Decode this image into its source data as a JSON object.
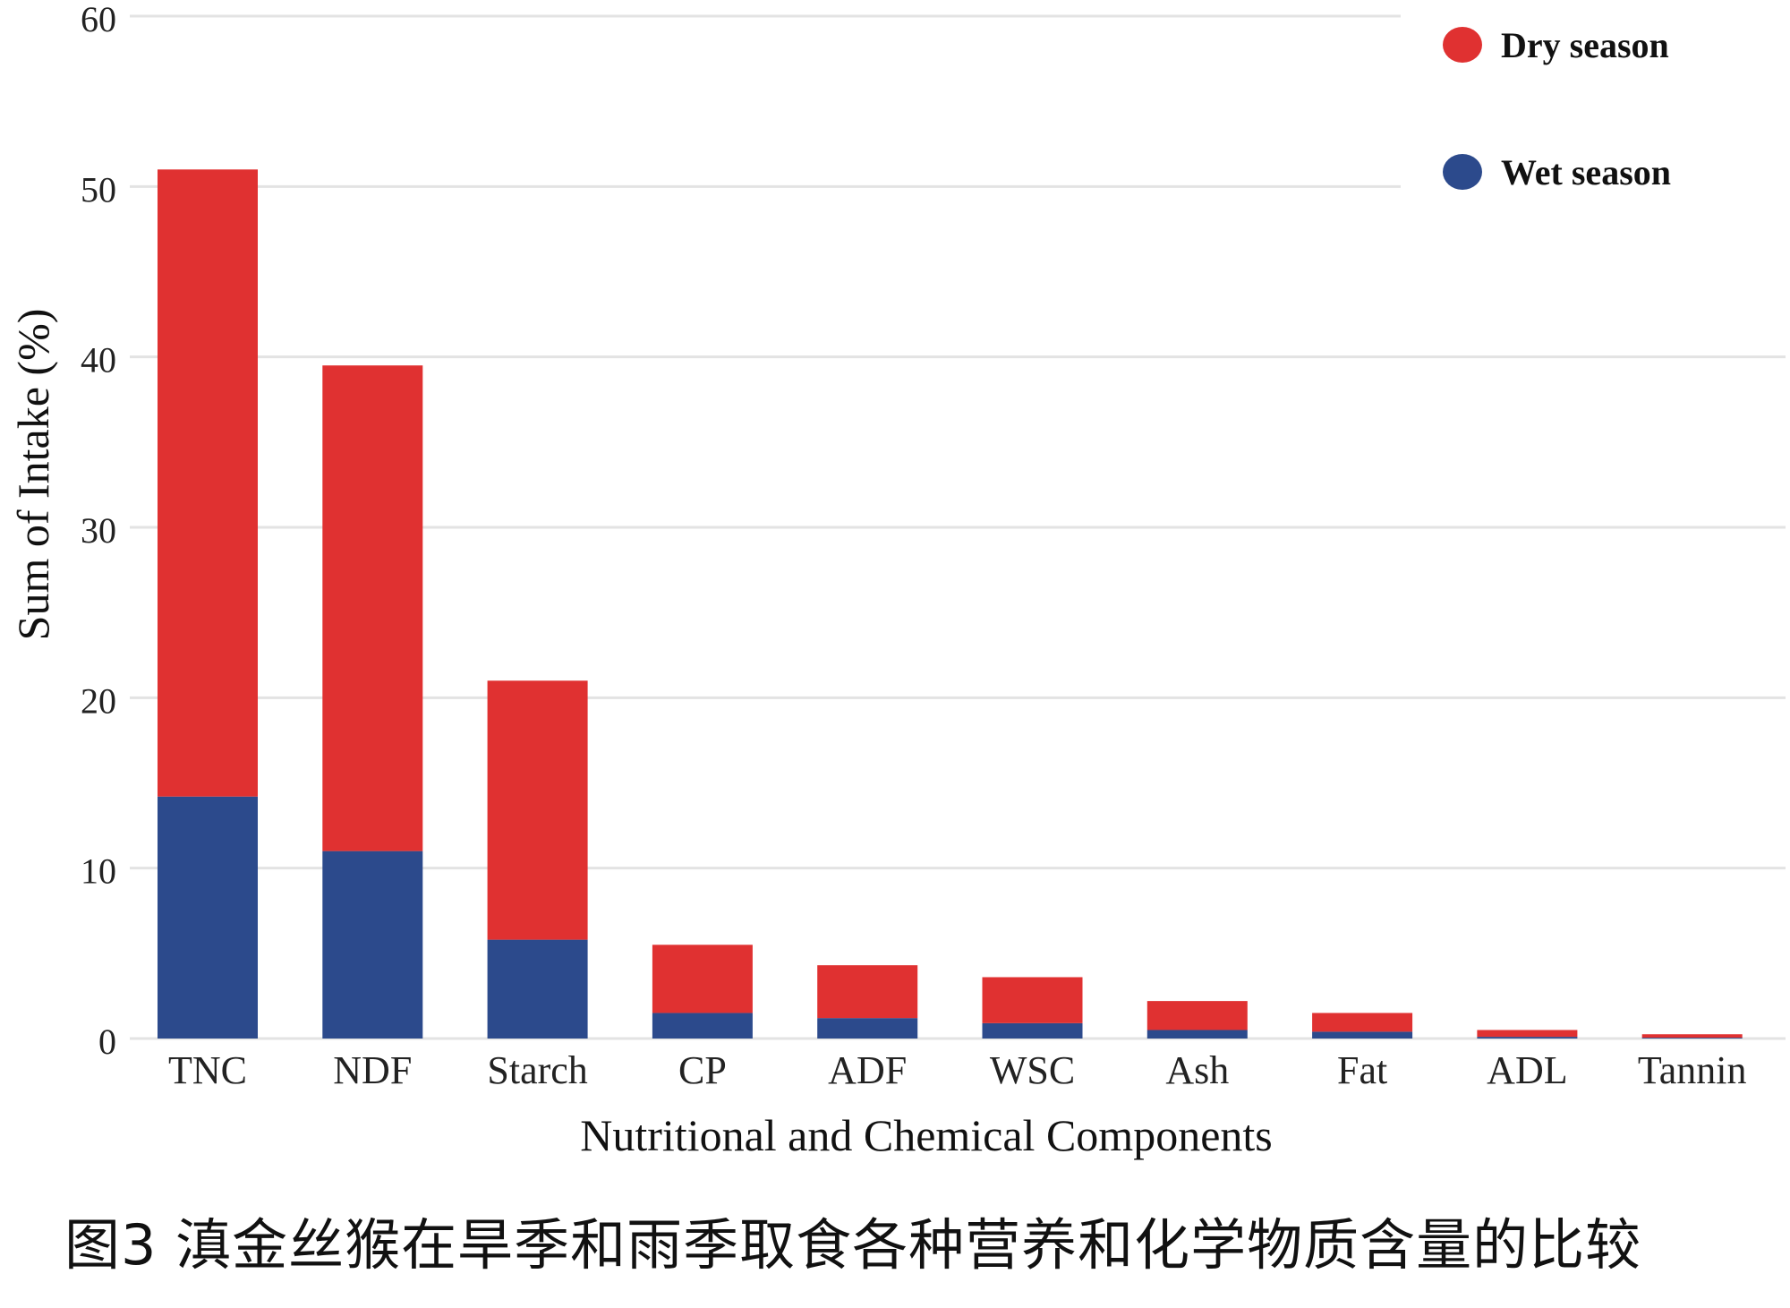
{
  "caption": "图3 滇金丝猴在旱季和雨季取食各种营养和化学物质含量的比较",
  "chart_data": {
    "type": "bar",
    "stacked": true,
    "title": "",
    "xlabel": "Nutritional and Chemical Components",
    "ylabel": "Sum of Intake (%)",
    "ylim": [
      0,
      60
    ],
    "yticks": [
      0,
      10,
      20,
      30,
      40,
      50,
      60
    ],
    "grid": true,
    "legend_position": "top-right",
    "categories": [
      "TNC",
      "NDF",
      "Starch",
      "CP",
      "ADF",
      "WSC",
      "Ash",
      "Fat",
      "ADL",
      "Tannin"
    ],
    "series": [
      {
        "name": "Wet season",
        "color": "#2c4a8c",
        "values": [
          14.2,
          11.0,
          5.8,
          1.5,
          1.2,
          0.9,
          0.5,
          0.4,
          0.1,
          0.05
        ]
      },
      {
        "name": "Dry season",
        "color": "#e03131",
        "values": [
          36.8,
          28.5,
          15.2,
          4.0,
          3.1,
          2.7,
          1.7,
          1.1,
          0.4,
          0.2
        ]
      }
    ],
    "legend_order": [
      "Dry season",
      "Wet season"
    ]
  }
}
